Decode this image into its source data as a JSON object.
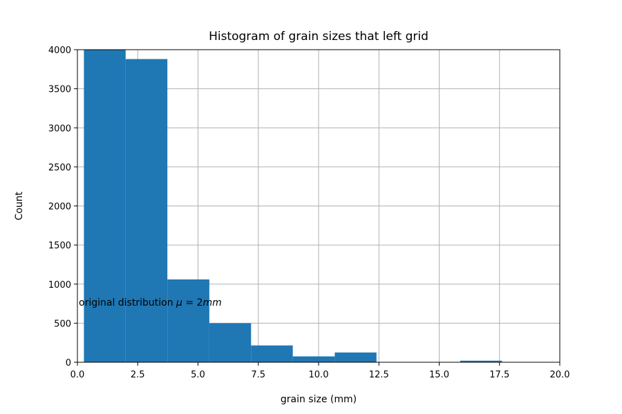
{
  "chart_data": {
    "type": "bar",
    "title": "Histogram of grain sizes that left grid",
    "xlabel": "grain size (mm)",
    "ylabel": "Count",
    "xlim": [
      0.0,
      20.0
    ],
    "ylim": [
      0,
      4000
    ],
    "xticks": [
      "0.0",
      "2.5",
      "5.0",
      "7.5",
      "10.0",
      "12.5",
      "15.0",
      "17.5",
      "20.0"
    ],
    "xtick_values": [
      0,
      2.5,
      5,
      7.5,
      10,
      12.5,
      15,
      17.5,
      20
    ],
    "yticks": [
      "0",
      "500",
      "1000",
      "1500",
      "2000",
      "2500",
      "3000",
      "3500",
      "4000"
    ],
    "ytick_values": [
      0,
      500,
      1000,
      1500,
      2000,
      2500,
      3000,
      3500,
      4000
    ],
    "grid": true,
    "bar_color": "#1f77b4",
    "bins": [
      {
        "x0": 0.27,
        "x1": 2.0,
        "value": 4000
      },
      {
        "x0": 2.0,
        "x1": 3.73,
        "value": 3880
      },
      {
        "x0": 3.73,
        "x1": 5.47,
        "value": 1060
      },
      {
        "x0": 5.47,
        "x1": 7.2,
        "value": 500
      },
      {
        "x0": 7.2,
        "x1": 8.93,
        "value": 215
      },
      {
        "x0": 8.93,
        "x1": 10.67,
        "value": 75
      },
      {
        "x0": 10.67,
        "x1": 12.4,
        "value": 125
      },
      {
        "x0": 12.4,
        "x1": 14.13,
        "value": 0
      },
      {
        "x0": 14.13,
        "x1": 15.87,
        "value": 0
      },
      {
        "x0": 15.87,
        "x1": 17.6,
        "value": 20
      }
    ],
    "annotation": {
      "prefix": "original distribution ",
      "math_mu": "μ",
      "math_eq": " = 2",
      "math_unit": "mm",
      "x": 0.0,
      "y": 750
    }
  }
}
